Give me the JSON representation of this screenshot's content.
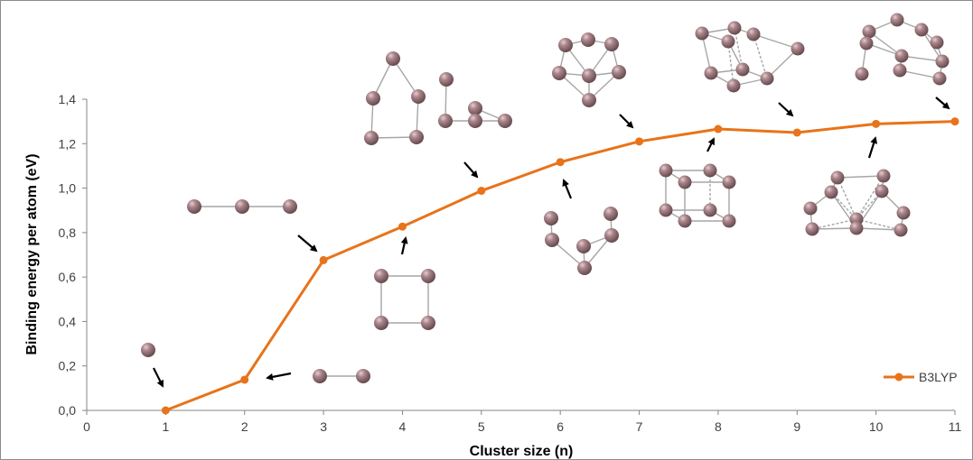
{
  "chart_data": {
    "type": "line",
    "title": "",
    "xlabel": "Cluster size (n)",
    "ylabel": "Binding energy per atom (eV)",
    "xlim": [
      0,
      11
    ],
    "ylim": [
      0,
      1.4
    ],
    "x_ticks": [
      "0",
      "1",
      "2",
      "3",
      "4",
      "5",
      "6",
      "7",
      "8",
      "9",
      "10",
      "11"
    ],
    "y_ticks": [
      "0,0",
      "0,2",
      "0,4",
      "0,6",
      "0,8",
      "1,0",
      "1,2",
      "1,4"
    ],
    "grid": false,
    "legend_position": "bottom-right",
    "series": [
      {
        "name": "B3LYP",
        "color": "#E8731A",
        "x": [
          1,
          2,
          3,
          4,
          5,
          6,
          7,
          8,
          9,
          10,
          11
        ],
        "y": [
          0.0,
          0.138,
          0.676,
          0.827,
          0.988,
          1.117,
          1.21,
          1.266,
          1.25,
          1.289,
          1.3
        ]
      }
    ],
    "annotations": "cluster structure drawings (n = 1 to 11) with arrows pointing to each data point"
  },
  "colors": {
    "atom": "#9a7278",
    "atom_highlight": "#d8b8bc",
    "bond": "#a6a6a6",
    "arrow": "#000000"
  }
}
